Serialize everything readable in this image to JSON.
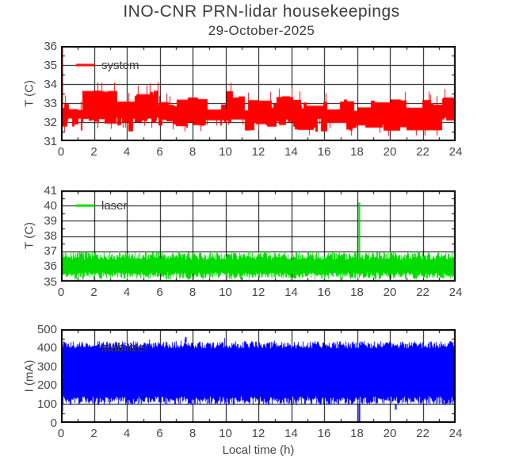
{
  "title": "INO-CNR PRN-lidar housekeepings",
  "subtitle": "29-October-2025",
  "xlabel": "Local time (h)",
  "colors": {
    "system": "#ff0000",
    "laser": "#00dc00",
    "stabilizer": "#0000ff",
    "axis": "#000000",
    "text": "#474747",
    "background": "#ffffff"
  },
  "chart_data": [
    {
      "id": "system",
      "type": "line",
      "legend": "system",
      "color_key": "system",
      "ylabel": "T (C)",
      "xlim": [
        0,
        24
      ],
      "ylim": [
        31,
        36
      ],
      "xticks": [
        0,
        2,
        4,
        6,
        8,
        10,
        12,
        14,
        16,
        18,
        20,
        22,
        24
      ],
      "yticks": [
        31,
        32,
        33,
        34,
        35,
        36
      ],
      "x_minor_step": 1,
      "y_minor_step": 0.5,
      "grid": true,
      "legend_line": {
        "x0": 0.9,
        "x1": 2.05,
        "y": 35
      },
      "approx_mean": 32.4,
      "bands": [
        {
          "x0": 0.0,
          "x1": 1.3,
          "lo": [
            31.5,
            32.2
          ],
          "hi": [
            32.55,
            33.2
          ]
        },
        {
          "x0": 1.3,
          "x1": 3.4,
          "lo": [
            31.9,
            32.25
          ],
          "hi": [
            33.6,
            33.7
          ]
        },
        {
          "x0": 3.4,
          "x1": 4.5,
          "lo": [
            31.5,
            32.2
          ],
          "hi": [
            32.55,
            33.3
          ]
        },
        {
          "x0": 4.5,
          "x1": 5.95,
          "lo": [
            31.9,
            32.25
          ],
          "hi": [
            33.35,
            33.7
          ]
        },
        {
          "x0": 5.95,
          "x1": 7.7,
          "lo": [
            31.5,
            32.2
          ],
          "hi": [
            32.55,
            33.2
          ]
        },
        {
          "x0": 7.7,
          "x1": 8.9,
          "lo": [
            31.8,
            32.2
          ],
          "hi": [
            33.15,
            33.7
          ]
        },
        {
          "x0": 8.9,
          "x1": 10.05,
          "lo": [
            31.5,
            32.2
          ],
          "hi": [
            32.55,
            33.2
          ]
        },
        {
          "x0": 10.05,
          "x1": 11.2,
          "lo": [
            31.8,
            32.2
          ],
          "hi": [
            33.15,
            33.7
          ]
        },
        {
          "x0": 11.2,
          "x1": 13.1,
          "lo": [
            31.5,
            32.2
          ],
          "hi": [
            32.55,
            33.2
          ]
        },
        {
          "x0": 13.1,
          "x1": 14.1,
          "lo": [
            31.8,
            32.2
          ],
          "hi": [
            33.1,
            33.45
          ]
        },
        {
          "x0": 14.1,
          "x1": 16.2,
          "lo": [
            31.5,
            32.2
          ],
          "hi": [
            32.6,
            33.2
          ]
        },
        {
          "x0": 16.2,
          "x1": 23.2,
          "lo": [
            31.5,
            32.0
          ],
          "hi": [
            32.5,
            33.2
          ]
        },
        {
          "x0": 23.2,
          "x1": 24.0,
          "lo": [
            31.9,
            32.3
          ],
          "hi": [
            33.2,
            33.7
          ]
        }
      ],
      "spikes": [
        {
          "x": 0.04,
          "y0": 31.8,
          "y1": 36.0
        }
      ],
      "run_flip_p": 0.12,
      "tick_p": 0.05,
      "tick_amp": 0.45
    },
    {
      "id": "laser",
      "type": "line",
      "legend": "laser",
      "color_key": "laser",
      "ylabel": "T (C)",
      "xlim": [
        0,
        24
      ],
      "ylim": [
        35,
        41
      ],
      "xticks": [
        0,
        2,
        4,
        6,
        8,
        10,
        12,
        14,
        16,
        18,
        20,
        22,
        24
      ],
      "yticks": [
        35,
        36,
        37,
        38,
        39,
        40,
        41
      ],
      "x_minor_step": 1,
      "y_minor_step": 0.5,
      "grid": true,
      "legend_line": {
        "x0": 0.9,
        "x1": 2.05,
        "y": 40
      },
      "approx_mean": 36.1,
      "bands": [
        {
          "x0": 0,
          "x1": 24,
          "lo": [
            35.15,
            35.6
          ],
          "hi": [
            36.45,
            37.0
          ]
        }
      ],
      "spikes": [
        {
          "x": 18.12,
          "y0": 36.2,
          "y1": 40.2
        }
      ],
      "run_flip_p": 1,
      "tick_p": 0,
      "tick_amp": 0
    },
    {
      "id": "stabilizer",
      "type": "line",
      "legend": "stabilizer",
      "color_key": "stabilizer",
      "ylabel": "I (mA)",
      "xlim": [
        0,
        24
      ],
      "ylim": [
        0,
        500
      ],
      "xticks": [
        0,
        2,
        4,
        6,
        8,
        10,
        12,
        14,
        16,
        18,
        20,
        22,
        24
      ],
      "yticks": [
        0,
        100,
        200,
        300,
        400,
        500
      ],
      "x_minor_step": 1,
      "y_minor_step": 50,
      "grid": true,
      "legend_line": {
        "x0": 0.9,
        "x1": 2.05,
        "y": 400
      },
      "approx_mean": 265,
      "bands": [
        {
          "x0": 0,
          "x1": 24,
          "lo": [
            95,
            140
          ],
          "hi": [
            398,
            436
          ]
        }
      ],
      "spikes": [
        {
          "x": 0.03,
          "y0": 60,
          "y1": 420
        },
        {
          "x": 7.55,
          "y0": 430,
          "y1": 458
        },
        {
          "x": 18.1,
          "y0": 100,
          "y1": 3
        },
        {
          "x": 20.33,
          "y0": 100,
          "y1": 70
        }
      ],
      "run_flip_p": 1,
      "tick_p": 0.02,
      "tick_amp": 18
    }
  ]
}
